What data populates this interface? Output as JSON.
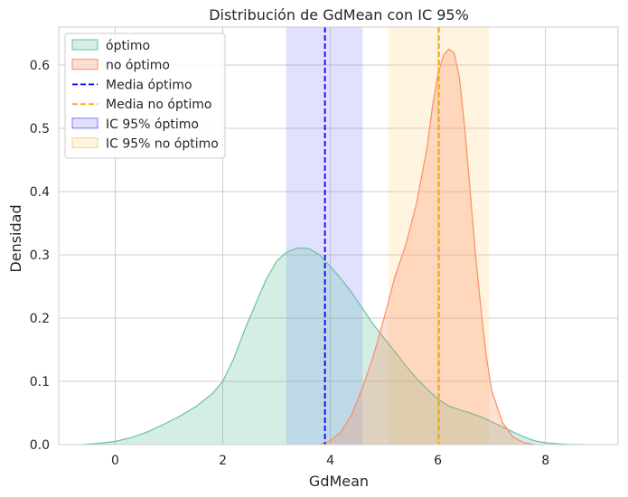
{
  "chart_data": {
    "type": "area",
    "title": "Distribución de GdMean con IC 95%",
    "xlabel": "GdMean",
    "ylabel": "Densidad",
    "xlim": [
      -1.05,
      9.35
    ],
    "ylim": [
      0,
      0.66
    ],
    "xticks": [
      "0",
      "2",
      "4",
      "6",
      "8"
    ],
    "xtick_values": [
      0,
      2,
      4,
      6,
      8
    ],
    "yticks": [
      "0.0",
      "0.1",
      "0.2",
      "0.3",
      "0.4",
      "0.5",
      "0.6"
    ],
    "ytick_values": [
      0,
      0.1,
      0.2,
      0.3,
      0.4,
      0.5,
      0.6
    ],
    "grid": true,
    "legend_position": "top-left",
    "series": [
      {
        "name": "óptimo",
        "fill": "#66c2a5",
        "stroke": "#66c2a5",
        "x": [
          -0.6,
          -0.3,
          0,
          0.3,
          0.6,
          0.9,
          1.2,
          1.5,
          1.8,
          2.0,
          2.2,
          2.4,
          2.6,
          2.8,
          3.0,
          3.2,
          3.4,
          3.6,
          3.8,
          4.0,
          4.2,
          4.4,
          4.6,
          4.8,
          5.0,
          5.2,
          5.4,
          5.6,
          5.8,
          6.0,
          6.2,
          6.4,
          6.6,
          6.8,
          7.0,
          7.2,
          7.4,
          7.6,
          7.8,
          8.0,
          8.2,
          8.4,
          8.7
        ],
        "y": [
          0.0,
          0.002,
          0.005,
          0.011,
          0.02,
          0.032,
          0.045,
          0.06,
          0.08,
          0.1,
          0.135,
          0.18,
          0.22,
          0.26,
          0.29,
          0.305,
          0.311,
          0.31,
          0.3,
          0.282,
          0.262,
          0.24,
          0.215,
          0.19,
          0.168,
          0.147,
          0.125,
          0.105,
          0.088,
          0.072,
          0.061,
          0.055,
          0.05,
          0.044,
          0.036,
          0.028,
          0.02,
          0.012,
          0.006,
          0.003,
          0.0015,
          0.0005,
          0.0
        ]
      },
      {
        "name": "no óptimo",
        "fill": "#fc8d62",
        "stroke": "#fc8d62",
        "x": [
          3.8,
          4.0,
          4.2,
          4.4,
          4.6,
          4.8,
          5.0,
          5.2,
          5.4,
          5.6,
          5.8,
          5.9,
          6.0,
          6.1,
          6.2,
          6.3,
          6.4,
          6.5,
          6.6,
          6.7,
          6.8,
          6.9,
          7.0,
          7.2,
          7.4,
          7.6,
          7.8
        ],
        "y": [
          0.0,
          0.006,
          0.02,
          0.048,
          0.09,
          0.14,
          0.2,
          0.265,
          0.315,
          0.38,
          0.47,
          0.535,
          0.585,
          0.615,
          0.625,
          0.62,
          0.58,
          0.5,
          0.4,
          0.3,
          0.215,
          0.14,
          0.085,
          0.035,
          0.012,
          0.003,
          0.0
        ]
      }
    ],
    "vlines": [
      {
        "name": "Media óptimo",
        "x": 3.9,
        "color": "#0000ff"
      },
      {
        "name": "Media no óptimo",
        "x": 6.02,
        "color": "#ffa500"
      }
    ],
    "bands": [
      {
        "name": "IC 95% óptimo",
        "x0": 3.18,
        "x1": 4.6,
        "color": "#7777ff"
      },
      {
        "name": "IC 95% no óptimo",
        "x0": 5.08,
        "x1": 6.95,
        "color": "#ffd27f"
      }
    ]
  }
}
